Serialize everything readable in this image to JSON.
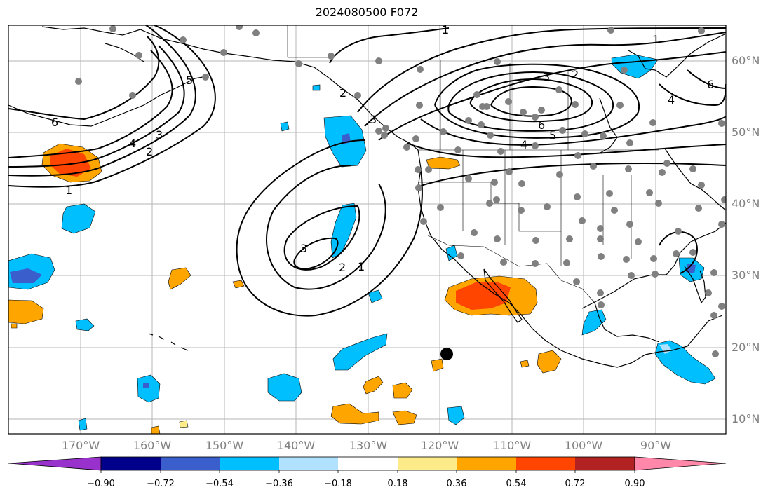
{
  "title": "2024080500 F072",
  "latitude_labels": [
    "60°N",
    "50°N",
    "40°N",
    "30°N",
    "20°N",
    "10°N"
  ],
  "longitude_labels": [
    "170°W",
    "160°W",
    "150°W",
    "140°W",
    "130°W",
    "120°W",
    "110°W",
    "100°W",
    "90°W"
  ],
  "contour_labels": [
    "1",
    "2",
    "3",
    "4",
    "5",
    "6",
    "1",
    "2",
    "3",
    "4",
    "5",
    "6",
    "1",
    "2",
    "3",
    "4",
    "6",
    "1",
    "2",
    "3"
  ],
  "colorbar": {
    "ticks": [
      "−0.90",
      "−0.72",
      "−0.54",
      "−0.36",
      "−0.18",
      "0.18",
      "0.36",
      "0.54",
      "0.72",
      "0.90"
    ],
    "colors": [
      "#9932cc",
      "#00008b",
      "#3a5fcd",
      "#00bfff",
      "#b0e2ff",
      "#ffffff",
      "#fdeb8a",
      "#ffa500",
      "#ff4500",
      "#b22222",
      "#ff88aa"
    ]
  },
  "marker": "storm-position"
}
